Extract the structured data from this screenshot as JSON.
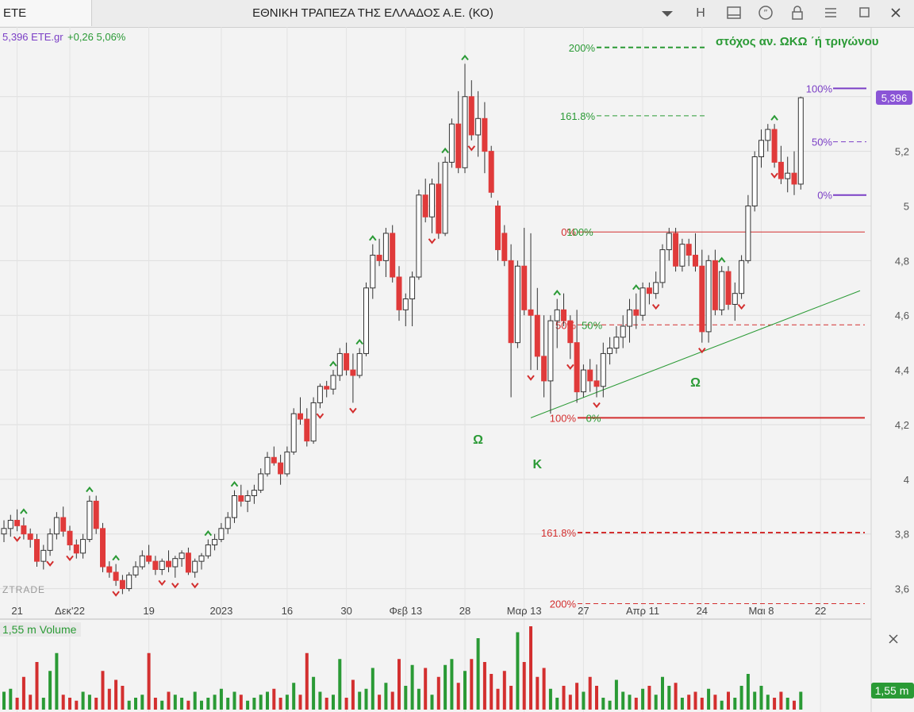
{
  "window": {
    "tab_symbol": "ETE",
    "title": "ΕΘΝΙΚΗ ΤΡΑΠΕΖΑ ΤΗΣ ΕΛΛΑΔΟΣ Α.Ε. (ΚΟ)",
    "buttons": {
      "dropdown": "chevron-down-icon",
      "h_label": "H",
      "layout": "panel-icon",
      "comment": "quote-icon",
      "lock": "lock-icon",
      "menu": "menu-icon",
      "maximize": "maximize-icon",
      "close": "close-icon"
    }
  },
  "quote": {
    "text": "5,396 ETE.gr",
    "change": "+0,26 5,06%"
  },
  "watermark": "ZTRADE",
  "price_tag": "5,396",
  "volume_label": "1,55 m Volume",
  "volume_tag": "1,55 m",
  "colors": {
    "up": "#ffffff",
    "down": "#e03a3a",
    "green": "#2a9a35",
    "red": "#d32f2f",
    "purple": "#7b3fc6"
  },
  "chart_data": {
    "type": "candlestick",
    "y_axis": {
      "ticks": [
        3.6,
        3.8,
        4,
        4.2,
        4.4,
        4.6,
        4.8,
        5,
        5.2,
        5.4
      ],
      "tick_labels": [
        "3,6",
        "3,8",
        "4",
        "4,2",
        "4,4",
        "4,6",
        "4,8",
        "5",
        "5,2",
        "5,4"
      ],
      "range": [
        3.5,
        5.62
      ]
    },
    "x_axis": {
      "labels": [
        "21",
        "Δεκ'22",
        "19",
        "2023",
        "16",
        "30",
        "Φεβ 13",
        "28",
        "Μαρ 13",
        "27",
        "Απρ 11",
        "24",
        "Μαι 8",
        "22"
      ],
      "label_index": [
        2,
        10,
        22,
        33,
        43,
        52,
        61,
        70,
        79,
        88,
        97,
        106,
        115,
        124
      ]
    },
    "bars": [
      [
        3.8,
        3.85,
        3.77,
        3.82
      ],
      [
        3.82,
        3.87,
        3.79,
        3.85
      ],
      [
        3.85,
        3.89,
        3.81,
        3.83
      ],
      [
        3.83,
        3.86,
        3.78,
        3.8
      ],
      [
        3.8,
        3.82,
        3.75,
        3.78
      ],
      [
        3.78,
        3.8,
        3.68,
        3.7
      ],
      [
        3.7,
        3.76,
        3.67,
        3.74
      ],
      [
        3.74,
        3.82,
        3.72,
        3.8
      ],
      [
        3.8,
        3.88,
        3.78,
        3.86
      ],
      [
        3.86,
        3.9,
        3.79,
        3.81
      ],
      [
        3.81,
        3.83,
        3.74,
        3.76
      ],
      [
        3.76,
        3.78,
        3.71,
        3.73
      ],
      [
        3.73,
        3.8,
        3.71,
        3.78
      ],
      [
        3.78,
        3.94,
        3.77,
        3.92
      ],
      [
        3.92,
        3.94,
        3.8,
        3.82
      ],
      [
        3.82,
        3.84,
        3.66,
        3.68
      ],
      [
        3.68,
        3.7,
        3.64,
        3.66
      ],
      [
        3.66,
        3.69,
        3.61,
        3.63
      ],
      [
        3.63,
        3.65,
        3.58,
        3.6
      ],
      [
        3.6,
        3.66,
        3.59,
        3.65
      ],
      [
        3.65,
        3.7,
        3.64,
        3.68
      ],
      [
        3.68,
        3.74,
        3.67,
        3.72
      ],
      [
        3.72,
        3.76,
        3.69,
        3.7
      ],
      [
        3.7,
        3.72,
        3.65,
        3.67
      ],
      [
        3.67,
        3.71,
        3.65,
        3.7
      ],
      [
        3.7,
        3.74,
        3.66,
        3.68
      ],
      [
        3.68,
        3.72,
        3.64,
        3.71
      ],
      [
        3.71,
        3.74,
        3.68,
        3.73
      ],
      [
        3.73,
        3.75,
        3.65,
        3.66
      ],
      [
        3.66,
        3.71,
        3.64,
        3.7
      ],
      [
        3.7,
        3.73,
        3.67,
        3.72
      ],
      [
        3.72,
        3.78,
        3.71,
        3.76
      ],
      [
        3.76,
        3.8,
        3.74,
        3.78
      ],
      [
        3.78,
        3.84,
        3.77,
        3.82
      ],
      [
        3.82,
        3.88,
        3.8,
        3.86
      ],
      [
        3.86,
        3.96,
        3.84,
        3.94
      ],
      [
        3.94,
        3.98,
        3.9,
        3.92
      ],
      [
        3.92,
        3.96,
        3.88,
        3.94
      ],
      [
        3.94,
        3.98,
        3.91,
        3.96
      ],
      [
        3.96,
        4.04,
        3.95,
        4.02
      ],
      [
        4.02,
        4.1,
        4.01,
        4.08
      ],
      [
        4.08,
        4.12,
        4.05,
        4.06
      ],
      [
        4.06,
        4.09,
        3.98,
        4.02
      ],
      [
        4.02,
        4.12,
        4.01,
        4.1
      ],
      [
        4.1,
        4.26,
        4.09,
        4.24
      ],
      [
        4.24,
        4.3,
        4.2,
        4.22
      ],
      [
        4.22,
        4.26,
        4.12,
        4.14
      ],
      [
        4.14,
        4.3,
        4.13,
        4.28
      ],
      [
        4.28,
        4.35,
        4.26,
        4.34
      ],
      [
        4.34,
        4.36,
        4.3,
        4.33
      ],
      [
        4.33,
        4.4,
        4.31,
        4.38
      ],
      [
        4.38,
        4.48,
        4.36,
        4.46
      ],
      [
        4.46,
        4.5,
        4.38,
        4.4
      ],
      [
        4.4,
        4.46,
        4.28,
        4.38
      ],
      [
        4.38,
        4.48,
        4.37,
        4.46
      ],
      [
        4.46,
        4.72,
        4.45,
        4.7
      ],
      [
        4.7,
        4.86,
        4.66,
        4.82
      ],
      [
        4.82,
        4.88,
        4.78,
        4.8
      ],
      [
        4.8,
        4.92,
        4.74,
        4.9
      ],
      [
        4.9,
        4.93,
        4.72,
        4.74
      ],
      [
        4.74,
        4.78,
        4.58,
        4.62
      ],
      [
        4.62,
        4.68,
        4.56,
        4.66
      ],
      [
        4.66,
        4.76,
        4.56,
        4.74
      ],
      [
        4.74,
        5.06,
        4.73,
        5.04
      ],
      [
        5.04,
        5.1,
        4.94,
        4.96
      ],
      [
        4.96,
        5.1,
        4.9,
        5.08
      ],
      [
        5.08,
        5.16,
        4.88,
        4.9
      ],
      [
        4.9,
        5.18,
        4.89,
        5.16
      ],
      [
        5.16,
        5.32,
        5.14,
        5.3
      ],
      [
        5.3,
        5.42,
        5.12,
        5.14
      ],
      [
        5.14,
        5.52,
        5.12,
        5.4
      ],
      [
        5.4,
        5.46,
        5.24,
        5.26
      ],
      [
        5.26,
        5.42,
        5.18,
        5.32
      ],
      [
        5.32,
        5.38,
        5.12,
        5.2
      ],
      [
        5.2,
        5.22,
        5.03,
        5.05
      ],
      [
        5.0,
        5.02,
        4.8,
        4.84
      ],
      [
        4.9,
        4.93,
        4.78,
        4.8
      ],
      [
        4.8,
        4.86,
        4.3,
        4.5
      ],
      [
        4.5,
        4.8,
        4.48,
        4.78
      ],
      [
        4.78,
        4.92,
        4.6,
        4.62
      ],
      [
        4.62,
        4.9,
        4.4,
        4.6
      ],
      [
        4.6,
        4.7,
        4.4,
        4.45
      ],
      [
        4.45,
        4.6,
        4.3,
        4.36
      ],
      [
        4.36,
        4.6,
        4.24,
        4.58
      ],
      [
        4.58,
        4.66,
        4.48,
        4.62
      ],
      [
        4.62,
        4.68,
        4.56,
        4.58
      ],
      [
        4.58,
        4.6,
        4.44,
        4.5
      ],
      [
        4.5,
        4.62,
        4.28,
        4.32
      ],
      [
        4.32,
        4.42,
        4.3,
        4.4
      ],
      [
        4.4,
        4.44,
        4.32,
        4.36
      ],
      [
        4.36,
        4.42,
        4.3,
        4.34
      ],
      [
        4.34,
        4.5,
        4.3,
        4.46
      ],
      [
        4.46,
        4.52,
        4.42,
        4.48
      ],
      [
        4.48,
        4.56,
        4.46,
        4.52
      ],
      [
        4.52,
        4.6,
        4.48,
        4.56
      ],
      [
        4.56,
        4.66,
        4.5,
        4.62
      ],
      [
        4.62,
        4.68,
        4.55,
        4.6
      ],
      [
        4.6,
        4.72,
        4.58,
        4.7
      ],
      [
        4.7,
        4.72,
        4.64,
        4.68
      ],
      [
        4.68,
        4.76,
        4.66,
        4.72
      ],
      [
        4.72,
        4.86,
        4.7,
        4.84
      ],
      [
        4.84,
        4.92,
        4.8,
        4.9
      ],
      [
        4.9,
        4.92,
        4.76,
        4.78
      ],
      [
        4.78,
        4.88,
        4.76,
        4.86
      ],
      [
        4.86,
        4.88,
        4.78,
        4.82
      ],
      [
        4.82,
        4.9,
        4.76,
        4.78
      ],
      [
        4.78,
        4.84,
        4.5,
        4.54
      ],
      [
        4.54,
        4.82,
        4.5,
        4.8
      ],
      [
        4.8,
        4.84,
        4.6,
        4.62
      ],
      [
        4.62,
        4.78,
        4.6,
        4.76
      ],
      [
        4.76,
        4.78,
        4.62,
        4.64
      ],
      [
        4.64,
        4.72,
        4.58,
        4.68
      ],
      [
        4.68,
        4.82,
        4.66,
        4.8
      ],
      [
        4.8,
        5.04,
        4.79,
        5.0
      ],
      [
        5.0,
        5.2,
        4.98,
        5.18
      ],
      [
        5.18,
        5.28,
        5.14,
        5.24
      ],
      [
        5.24,
        5.3,
        5.2,
        5.28
      ],
      [
        5.28,
        5.3,
        5.14,
        5.16
      ],
      [
        5.16,
        5.22,
        5.08,
        5.1
      ],
      [
        5.1,
        5.18,
        5.05,
        5.12
      ],
      [
        5.12,
        5.2,
        5.04,
        5.08
      ],
      [
        5.08,
        5.4,
        5.06,
        5.396
      ]
    ],
    "volume": [
      0.6,
      0.7,
      0.4,
      1.1,
      0.5,
      1.6,
      0.4,
      1.3,
      1.9,
      0.5,
      0.4,
      0.3,
      0.6,
      0.5,
      0.4,
      1.3,
      0.7,
      1.0,
      0.8,
      0.3,
      0.4,
      0.5,
      1.9,
      0.4,
      0.3,
      0.6,
      0.5,
      0.4,
      0.3,
      0.6,
      0.3,
      0.4,
      0.5,
      0.7,
      0.4,
      0.6,
      0.5,
      0.3,
      0.4,
      0.5,
      0.6,
      0.7,
      0.4,
      0.5,
      0.9,
      0.5,
      1.9,
      1.1,
      0.6,
      0.4,
      0.5,
      1.7,
      0.4,
      1.0,
      0.6,
      0.7,
      1.4,
      0.5,
      0.9,
      0.6,
      1.7,
      0.8,
      1.5,
      0.7,
      1.4,
      0.5,
      1.1,
      1.5,
      1.7,
      0.9,
      1.3,
      1.7,
      2.4,
      1.6,
      1.2,
      0.7,
      1.3,
      0.8,
      2.6,
      1.6,
      2.8,
      1.1,
      1.4,
      0.7,
      0.4,
      0.8,
      0.5,
      0.9,
      0.6,
      1.1,
      0.8,
      0.4,
      0.3,
      1.0,
      0.6,
      0.5,
      0.4,
      0.7,
      0.8,
      0.5,
      1.1,
      0.8,
      0.9,
      0.4,
      0.5,
      0.6,
      0.4,
      0.7,
      0.5,
      0.3,
      0.6,
      0.4,
      0.8,
      1.2,
      0.6,
      0.8,
      0.5,
      0.4,
      0.6,
      0.4,
      0.3,
      0.6
    ],
    "signals_up": [
      3,
      13,
      17,
      31,
      35,
      50,
      54,
      56,
      67,
      70,
      84,
      96,
      109,
      117
    ],
    "signals_down": [
      2,
      7,
      10,
      17,
      24,
      26,
      29,
      48,
      53,
      65,
      71,
      80,
      86,
      90,
      99,
      106,
      112,
      117
    ],
    "fib_lower": {
      "levels": [
        "0%",
        "50%",
        "100%",
        "161.8%",
        "200%"
      ],
      "values": [
        4.905,
        4.565,
        4.225,
        3.805,
        3.545
      ],
      "overlay_labels": [
        "100%",
        "50%",
        "0%"
      ]
    },
    "fib_upper": {
      "levels": [
        "161.8%",
        "200%"
      ],
      "values": [
        5.33,
        5.58
      ]
    },
    "fib_recent": {
      "levels": [
        "100%",
        "50%",
        "0%"
      ],
      "values": [
        5.43,
        5.235,
        5.04
      ]
    },
    "trendline": {
      "from": [
        80,
        4.225
      ],
      "to": [
        130,
        4.69
      ]
    },
    "target_text": "στόχος αν. ΩΚΩ ΄ή τριγώνου",
    "pattern_labels": [
      {
        "text": "Ω",
        "bar": 72,
        "y": 4.13
      },
      {
        "text": "Κ",
        "bar": 81,
        "y": 4.04
      },
      {
        "text": "Ω",
        "bar": 105,
        "y": 4.34
      }
    ]
  }
}
